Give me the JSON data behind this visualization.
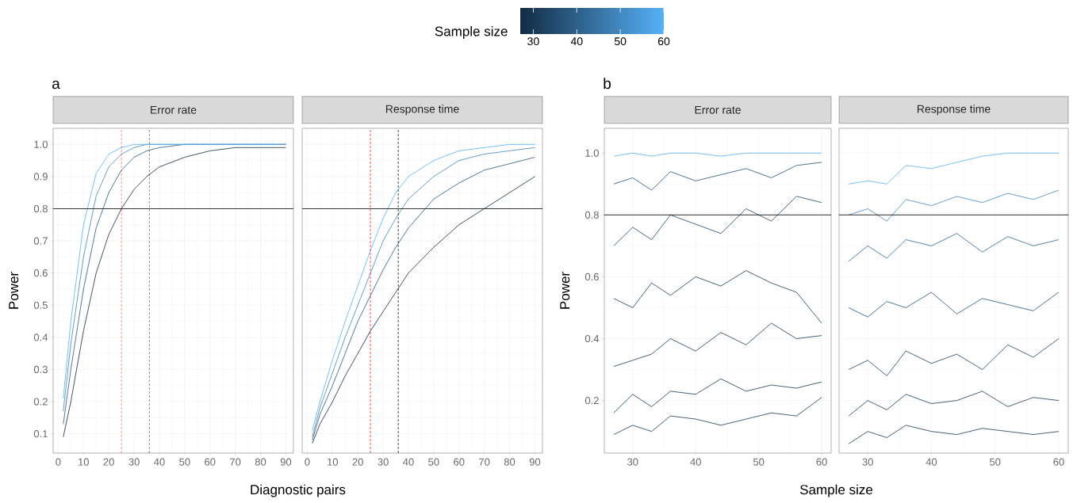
{
  "chart_data": [
    {
      "type": "line",
      "title": "a",
      "subtitle": "Error rate",
      "xlabel": "Diagnostic pairs",
      "ylabel": "Power",
      "clabel": "Sample size",
      "clim": [
        27,
        60
      ],
      "cticks": [
        30,
        40,
        50,
        60
      ],
      "x": [
        2,
        5,
        10,
        15,
        20,
        25,
        30,
        35,
        40,
        50,
        60,
        70,
        80,
        90
      ],
      "series": [
        {
          "color": "#132b43",
          "values": [
            0.09,
            0.2,
            0.42,
            0.6,
            0.72,
            0.8,
            0.86,
            0.9,
            0.93,
            0.96,
            0.98,
            0.99,
            0.99,
            0.99
          ]
        },
        {
          "color": "#29587f",
          "values": [
            0.13,
            0.3,
            0.55,
            0.74,
            0.85,
            0.92,
            0.96,
            0.98,
            0.99,
            1.0,
            1.0,
            1.0,
            1.0,
            1.0
          ]
        },
        {
          "color": "#4084bb",
          "values": [
            0.17,
            0.38,
            0.65,
            0.84,
            0.93,
            0.97,
            0.99,
            1.0,
            1.0,
            1.0,
            1.0,
            1.0,
            1.0,
            1.0
          ]
        },
        {
          "color": "#56b1f7",
          "values": [
            0.21,
            0.45,
            0.75,
            0.91,
            0.97,
            0.99,
            1.0,
            1.0,
            1.0,
            1.0,
            1.0,
            1.0,
            1.0,
            1.0
          ]
        }
      ],
      "xlim": [
        -2,
        93
      ],
      "xticks": [
        0,
        10,
        20,
        30,
        40,
        50,
        60,
        70,
        80,
        90
      ],
      "ylim": [
        0.04,
        1.05
      ],
      "yticks": [
        0.1,
        0.2,
        0.3,
        0.4,
        0.5,
        0.6,
        0.7,
        0.8,
        0.9,
        {
          "value": 1,
          "label": "1.0"
        }
      ],
      "grid": true,
      "ref_lines": [
        {
          "axis": "x",
          "value": 25,
          "color": "#ff0000",
          "line_style": "dashed"
        },
        {
          "axis": "x",
          "value": 36,
          "color": "#000000",
          "line_style": "dashed"
        },
        {
          "axis": "y",
          "value": 0.8,
          "color": "#000000",
          "line_style": "solid"
        }
      ]
    },
    {
      "type": "line",
      "subtitle": "Response time",
      "x": [
        2,
        5,
        10,
        15,
        20,
        25,
        30,
        35,
        40,
        50,
        60,
        70,
        80,
        90
      ],
      "series": [
        {
          "color": "#132b43",
          "values": [
            0.07,
            0.13,
            0.2,
            0.28,
            0.35,
            0.42,
            0.48,
            0.54,
            0.6,
            0.68,
            0.75,
            0.8,
            0.85,
            0.9
          ]
        },
        {
          "color": "#29587f",
          "values": [
            0.08,
            0.16,
            0.25,
            0.35,
            0.45,
            0.53,
            0.61,
            0.68,
            0.74,
            0.83,
            0.88,
            0.92,
            0.94,
            0.96
          ]
        },
        {
          "color": "#4084bb",
          "values": [
            0.09,
            0.18,
            0.29,
            0.4,
            0.5,
            0.6,
            0.7,
            0.77,
            0.83,
            0.9,
            0.95,
            0.97,
            0.98,
            0.99
          ]
        },
        {
          "color": "#56b1f7",
          "values": [
            0.11,
            0.2,
            0.33,
            0.45,
            0.56,
            0.67,
            0.77,
            0.85,
            0.9,
            0.95,
            0.98,
            0.99,
            1.0,
            1.0
          ]
        }
      ],
      "xlim": [
        -2,
        93
      ],
      "xticks": [
        0,
        10,
        20,
        30,
        40,
        50,
        60,
        70,
        80,
        90
      ],
      "ylim": [
        0.04,
        1.05
      ],
      "yticks": [
        0.1,
        0.2,
        0.3,
        0.4,
        0.5,
        0.6,
        0.7,
        0.8,
        0.9,
        1
      ],
      "grid": true,
      "tick_labels": "x",
      "ref_lines": [
        {
          "axis": "x",
          "value": 25,
          "color": "#ff0000",
          "line_style": "dashed"
        },
        {
          "axis": "x",
          "value": 36,
          "color": "#000000",
          "line_style": "dashed"
        },
        {
          "axis": "y",
          "value": 0.8,
          "color": "#000000",
          "line_style": "solid"
        }
      ]
    },
    {
      "type": "line",
      "title": "b",
      "subtitle": "Error rate",
      "xlabel": "Sample size",
      "ylabel": "Power",
      "x": [
        27,
        30,
        33,
        36,
        40,
        44,
        48,
        52,
        56,
        60
      ],
      "series": [
        {
          "color": "#1b3a56",
          "values": [
            0.09,
            0.12,
            0.1,
            0.15,
            0.14,
            0.12,
            0.14,
            0.16,
            0.15,
            0.21
          ]
        },
        {
          "color": "#1b3a56",
          "values": [
            0.16,
            0.22,
            0.18,
            0.23,
            0.22,
            0.27,
            0.23,
            0.25,
            0.24,
            0.26
          ]
        },
        {
          "color": "#1b3a56",
          "values": [
            0.31,
            0.33,
            0.35,
            0.4,
            0.36,
            0.42,
            0.38,
            0.45,
            0.4,
            0.41
          ]
        },
        {
          "color": "#1b3a56",
          "values": [
            0.53,
            0.5,
            0.58,
            0.54,
            0.6,
            0.57,
            0.62,
            0.58,
            0.55,
            0.45
          ]
        },
        {
          "color": "#1d4163",
          "values": [
            0.7,
            0.76,
            0.72,
            0.8,
            0.77,
            0.74,
            0.82,
            0.78,
            0.86,
            0.84
          ]
        },
        {
          "color": "#24507a",
          "values": [
            0.9,
            0.92,
            0.88,
            0.94,
            0.91,
            0.93,
            0.95,
            0.92,
            0.96,
            0.97
          ]
        },
        {
          "color": "#56b1f7",
          "values": [
            0.99,
            1.0,
            0.99,
            1.0,
            1.0,
            0.99,
            1.0,
            1.0,
            1.0,
            1.0
          ]
        }
      ],
      "xlim": [
        25.5,
        61.5
      ],
      "xticks": [
        30,
        40,
        50,
        60
      ],
      "ylim": [
        0.03,
        1.08
      ],
      "yticks": [
        0.2,
        0.4,
        0.6,
        0.8,
        {
          "value": 1,
          "label": "1.0"
        }
      ],
      "grid": true,
      "ref_lines": [
        {
          "axis": "y",
          "value": 0.8,
          "color": "#000000",
          "line_style": "solid"
        }
      ]
    },
    {
      "type": "line",
      "subtitle": "Response time",
      "x": [
        27,
        30,
        33,
        36,
        40,
        44,
        48,
        52,
        56,
        60
      ],
      "series": [
        {
          "color": "#1b3a56",
          "values": [
            0.06,
            0.1,
            0.08,
            0.12,
            0.1,
            0.09,
            0.11,
            0.1,
            0.09,
            0.1
          ]
        },
        {
          "color": "#1b3a56",
          "values": [
            0.15,
            0.2,
            0.17,
            0.22,
            0.19,
            0.2,
            0.23,
            0.18,
            0.21,
            0.2
          ]
        },
        {
          "color": "#1d4163",
          "values": [
            0.3,
            0.33,
            0.28,
            0.36,
            0.32,
            0.35,
            0.3,
            0.38,
            0.34,
            0.4
          ]
        },
        {
          "color": "#24507a",
          "values": [
            0.5,
            0.47,
            0.52,
            0.5,
            0.55,
            0.48,
            0.53,
            0.51,
            0.49,
            0.55
          ]
        },
        {
          "color": "#2d6291",
          "values": [
            0.65,
            0.7,
            0.66,
            0.72,
            0.7,
            0.74,
            0.68,
            0.73,
            0.7,
            0.72
          ]
        },
        {
          "color": "#3f86c4",
          "values": [
            0.8,
            0.82,
            0.78,
            0.85,
            0.83,
            0.86,
            0.84,
            0.87,
            0.85,
            0.88
          ]
        },
        {
          "color": "#56b1f7",
          "values": [
            0.9,
            0.91,
            0.9,
            0.96,
            0.95,
            0.97,
            0.99,
            1.0,
            1.0,
            1.0
          ]
        }
      ],
      "xlim": [
        25.5,
        61.5
      ],
      "xticks": [
        30,
        40,
        50,
        60
      ],
      "ylim": [
        0.03,
        1.08
      ],
      "yticks": [
        0.2,
        0.4,
        0.6,
        0.8,
        1
      ],
      "grid": true,
      "tick_labels": "x",
      "ref_lines": [
        {
          "axis": "y",
          "value": 0.8,
          "color": "#000000",
          "line_style": "solid"
        }
      ]
    }
  ]
}
